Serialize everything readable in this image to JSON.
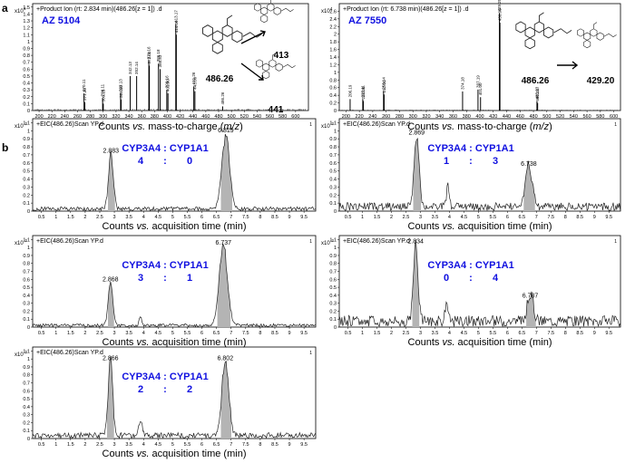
{
  "panel_labels": {
    "a": "a",
    "b": "b"
  },
  "colors": {
    "blue": "#1010e0",
    "peak_fill": "#b4b4b4",
    "trace": "#222222"
  },
  "chart_data": [
    {
      "id": "ms1",
      "type": "bar",
      "header": "+Product Ion (rt: 2.834 min)(486.26[z = 1]) .d",
      "scale": "x10",
      "scale_exp": "5",
      "compound": "AZ 5104",
      "xlabel_pre": "Counts",
      "xlabel_vs": "vs.",
      "xlabel_post": "mass-to-charge (",
      "xlabel_unit": "m/z",
      "xlabel_end": ")",
      "xlim": [
        190,
        620
      ],
      "ylim": [
        0,
        1.55
      ],
      "yticks": [
        0,
        0.1,
        0.2,
        0.3,
        0.4,
        0.5,
        0.6,
        0.7,
        0.8,
        0.9,
        1,
        1.1,
        1.2,
        1.3,
        1.4,
        1.5
      ],
      "xticks": [
        200,
        220,
        240,
        260,
        280,
        300,
        320,
        340,
        360,
        380,
        400,
        420,
        440,
        460,
        480,
        500,
        520,
        540,
        560,
        580,
        600
      ],
      "peaks": [
        {
          "x": 270.11,
          "y": 0.25,
          "label": "270.11"
        },
        {
          "x": 271.36,
          "y": 0.12,
          "label": "271.36"
        },
        {
          "x": 299.11,
          "y": 0.18,
          "label": "299.11"
        },
        {
          "x": 300.15,
          "y": 0.1,
          "label": "300.15"
        },
        {
          "x": 327.13,
          "y": 0.25,
          "label": "327.13"
        },
        {
          "x": 328.0,
          "y": 0.16,
          "label": "328.00"
        },
        {
          "x": 342.13,
          "y": 0.5,
          "label": "342.13"
        },
        {
          "x": 352.14,
          "y": 0.5,
          "label": "352.14"
        },
        {
          "x": 371.16,
          "y": 0.72,
          "label": "371.16"
        },
        {
          "x": 372.0,
          "y": 0.65,
          "label": "372.00"
        },
        {
          "x": 386.18,
          "y": 0.68,
          "label": "386.18"
        },
        {
          "x": 388.83,
          "y": 0.6,
          "label": "388.83"
        },
        {
          "x": 399.16,
          "y": 0.3,
          "label": "399.16"
        },
        {
          "x": 401.0,
          "y": 0.25,
          "label": "401.00"
        },
        {
          "x": 413.17,
          "y": 1.25,
          "label": "413.17"
        },
        {
          "x": 414.0,
          "y": 1.1,
          "label": "414.00"
        },
        {
          "x": 441.26,
          "y": 0.35,
          "label": "441.26"
        },
        {
          "x": 443.0,
          "y": 0.28,
          "label": "443.00"
        },
        {
          "x": 486.26,
          "y": 0.06,
          "label": "486.26"
        }
      ],
      "structures": [
        {
          "label": "486.26"
        },
        {
          "label": "413"
        },
        {
          "label": "441"
        }
      ]
    },
    {
      "id": "ms2",
      "type": "bar",
      "header": "+Product Ion (rt: 6.738 min)(486.26[z = 1]) .d",
      "scale": "x10",
      "scale_exp": "4",
      "compound": "AZ 7550",
      "xlabel_pre": "Counts",
      "xlabel_vs": "vs.",
      "xlabel_post": "mass-to-charge (",
      "xlabel_unit": "m/z",
      "xlabel_end": ")",
      "xlim": [
        190,
        610
      ],
      "ylim": [
        0,
        2.8
      ],
      "yticks": [
        0,
        0.2,
        0.4,
        0.6,
        0.8,
        1,
        1.2,
        1.4,
        1.6,
        1.8,
        2,
        2.2,
        2.4,
        2.6
      ],
      "xticks": [
        200,
        220,
        240,
        260,
        280,
        300,
        320,
        340,
        360,
        380,
        400,
        420,
        440,
        460,
        480,
        500,
        520,
        540,
        560,
        580,
        600
      ],
      "peaks": [
        {
          "x": 206.19,
          "y": 0.3,
          "label": "206.19"
        },
        {
          "x": 225.11,
          "y": 0.3,
          "label": "225.11"
        },
        {
          "x": 226.0,
          "y": 0.25,
          "label": "226.00"
        },
        {
          "x": 256.14,
          "y": 0.5,
          "label": "256.14"
        },
        {
          "x": 257.0,
          "y": 0.42,
          "label": "257.00"
        },
        {
          "x": 374.18,
          "y": 0.5,
          "label": "374.18"
        },
        {
          "x": 397.19,
          "y": 0.55,
          "label": "397.19"
        },
        {
          "x": 401.0,
          "y": 0.35,
          "label": "401.00"
        },
        {
          "x": 429.2,
          "y": 2.55,
          "label": "429.20"
        },
        {
          "x": 430.0,
          "y": 2.3,
          "label": "430.00"
        },
        {
          "x": 485.23,
          "y": 0.25,
          "label": "485.23"
        },
        {
          "x": 486.26,
          "y": 0.2,
          "label": "486.26"
        }
      ],
      "structures": [
        {
          "label": "486.26"
        },
        {
          "label": "429.20"
        }
      ]
    },
    {
      "id": "eic1",
      "type": "line",
      "header": "+EIC(486.26)Scan YP.d",
      "scale": "x10",
      "scale_exp": "-2",
      "ratio_title": "CYP3A4 : CYP1A1",
      "ratio_left": "4",
      "ratio_colon": ":",
      "ratio_right": "0",
      "xlabel_pre": "Counts",
      "xlabel_vs": "vs.",
      "xlabel_post": "acquisition time (min)",
      "xlim": [
        0.2,
        9.9
      ],
      "ylim": [
        0,
        1.15
      ],
      "yticks": [
        0,
        0.1,
        0.2,
        0.3,
        0.4,
        0.5,
        0.6,
        0.7,
        0.8,
        0.9,
        1,
        1.1
      ],
      "xticks": [
        0.5,
        1,
        1.5,
        2,
        2.5,
        3,
        3.5,
        4,
        4.5,
        5,
        5.5,
        6,
        6.5,
        7,
        7.5,
        8,
        8.5,
        9,
        9.5
      ],
      "peaks": [
        {
          "rt": 2.883,
          "height": 0.68,
          "width": 0.14,
          "label": "2.883"
        },
        {
          "rt": 6.819,
          "height": 0.93,
          "width": 0.22,
          "label": "6.819"
        }
      ],
      "minor": [],
      "noise": 0.05
    },
    {
      "id": "eic2",
      "type": "line",
      "header": "+EIC(486.26)Scan YP.d",
      "scale": "x10",
      "scale_exp": "-2",
      "ratio_title": "CYP3A4 : CYP1A1",
      "ratio_left": "1",
      "ratio_colon": ":",
      "ratio_right": "3",
      "xlabel_pre": "Counts",
      "xlabel_vs": "vs.",
      "xlabel_post": "acquisition time (min)",
      "xlim": [
        0.2,
        9.9
      ],
      "ylim": [
        0,
        1.15
      ],
      "yticks": [
        0,
        0.1,
        0.2,
        0.3,
        0.4,
        0.5,
        0.6,
        0.7,
        0.8,
        0.9,
        1,
        1.1
      ],
      "xticks": [
        0.5,
        1,
        1.5,
        2,
        2.5,
        3,
        3.5,
        4,
        4.5,
        5,
        5.5,
        6,
        6.5,
        7,
        7.5,
        8,
        8.5,
        9,
        9.5
      ],
      "peaks": [
        {
          "rt": 2.869,
          "height": 0.9,
          "width": 0.14,
          "label": "2.869"
        },
        {
          "rt": 6.738,
          "height": 0.52,
          "width": 0.2,
          "label": "6.738"
        }
      ],
      "minor": [
        {
          "rt": 3.95,
          "height": 0.28,
          "width": 0.08
        }
      ],
      "noise": 0.1
    },
    {
      "id": "eic3",
      "type": "line",
      "header": "+EIC(486.26)Scan YP.d",
      "scale": "x10",
      "scale_exp": "-2",
      "ratio_title": "CYP3A4 : CYP1A1",
      "ratio_left": "3",
      "ratio_colon": ":",
      "ratio_right": "1",
      "xlabel_pre": "Counts",
      "xlabel_vs": "vs.",
      "xlabel_post": "acquisition time (min)",
      "xlim": [
        0.2,
        9.9
      ],
      "ylim": [
        0,
        1.15
      ],
      "yticks": [
        0,
        0.1,
        0.2,
        0.3,
        0.4,
        0.5,
        0.6,
        0.7,
        0.8,
        0.9,
        1,
        1.1
      ],
      "xticks": [
        0.5,
        1,
        1.5,
        2,
        2.5,
        3,
        3.5,
        4,
        4.5,
        5,
        5.5,
        6,
        6.5,
        7,
        7.5,
        8,
        8.5,
        9,
        9.5
      ],
      "peaks": [
        {
          "rt": 2.868,
          "height": 0.53,
          "width": 0.13,
          "label": "2.868"
        },
        {
          "rt": 6.737,
          "height": 0.98,
          "width": 0.24,
          "label": "6.737"
        }
      ],
      "minor": [
        {
          "rt": 3.9,
          "height": 0.1,
          "width": 0.08
        }
      ],
      "noise": 0.04
    },
    {
      "id": "eic4",
      "type": "line",
      "header": "+EIC(486.26)Scan YP.d",
      "scale": "x10",
      "scale_exp": "-2",
      "ratio_title": "CYP3A4 : CYP1A1",
      "ratio_left": "0",
      "ratio_colon": ":",
      "ratio_right": "4",
      "xlabel_pre": "Counts",
      "xlabel_vs": "vs.",
      "xlabel_post": "acquisition time (min)",
      "xlim": [
        0.2,
        9.9
      ],
      "ylim": [
        0,
        1.15
      ],
      "yticks": [
        0,
        0.1,
        0.2,
        0.3,
        0.4,
        0.5,
        0.6,
        0.7,
        0.8,
        0.9,
        1,
        1.1
      ],
      "xticks": [
        0.5,
        1,
        1.5,
        2,
        2.5,
        3,
        3.5,
        4,
        4.5,
        5,
        5.5,
        6,
        6.5,
        7,
        7.5,
        8,
        8.5,
        9,
        9.5
      ],
      "peaks": [
        {
          "rt": 2.834,
          "height": 1.0,
          "width": 0.13,
          "label": "2.834"
        },
        {
          "rt": 6.787,
          "height": 0.33,
          "width": 0.18,
          "label": "6.787"
        }
      ],
      "minor": [
        {
          "rt": 3.9,
          "height": 0.25,
          "width": 0.08
        }
      ],
      "noise": 0.14
    },
    {
      "id": "eic5",
      "type": "line",
      "header": "+EIC(486.26)Scan YP.d",
      "scale": "x10",
      "scale_exp": "-2",
      "ratio_title": "CYP3A4 : CYP1A1",
      "ratio_left": "2",
      "ratio_colon": ":",
      "ratio_right": "2",
      "xlabel_pre": "Counts",
      "xlabel_vs": "vs.",
      "xlabel_post": "acquisition time (min)",
      "xlim": [
        0.2,
        9.9
      ],
      "ylim": [
        0,
        1.15
      ],
      "yticks": [
        0,
        0.1,
        0.2,
        0.3,
        0.4,
        0.5,
        0.6,
        0.7,
        0.8,
        0.9,
        1,
        1.1
      ],
      "xticks": [
        0.5,
        1,
        1.5,
        2,
        2.5,
        3,
        3.5,
        4,
        4.5,
        5,
        5.5,
        6,
        6.5,
        7,
        7.5,
        8,
        8.5,
        9,
        9.5
      ],
      "peaks": [
        {
          "rt": 2.866,
          "height": 0.93,
          "width": 0.13,
          "label": "2.866"
        },
        {
          "rt": 6.802,
          "height": 0.93,
          "width": 0.2,
          "label": "6.802"
        }
      ],
      "minor": [
        {
          "rt": 3.9,
          "height": 0.2,
          "width": 0.1
        }
      ],
      "noise": 0.07
    }
  ]
}
